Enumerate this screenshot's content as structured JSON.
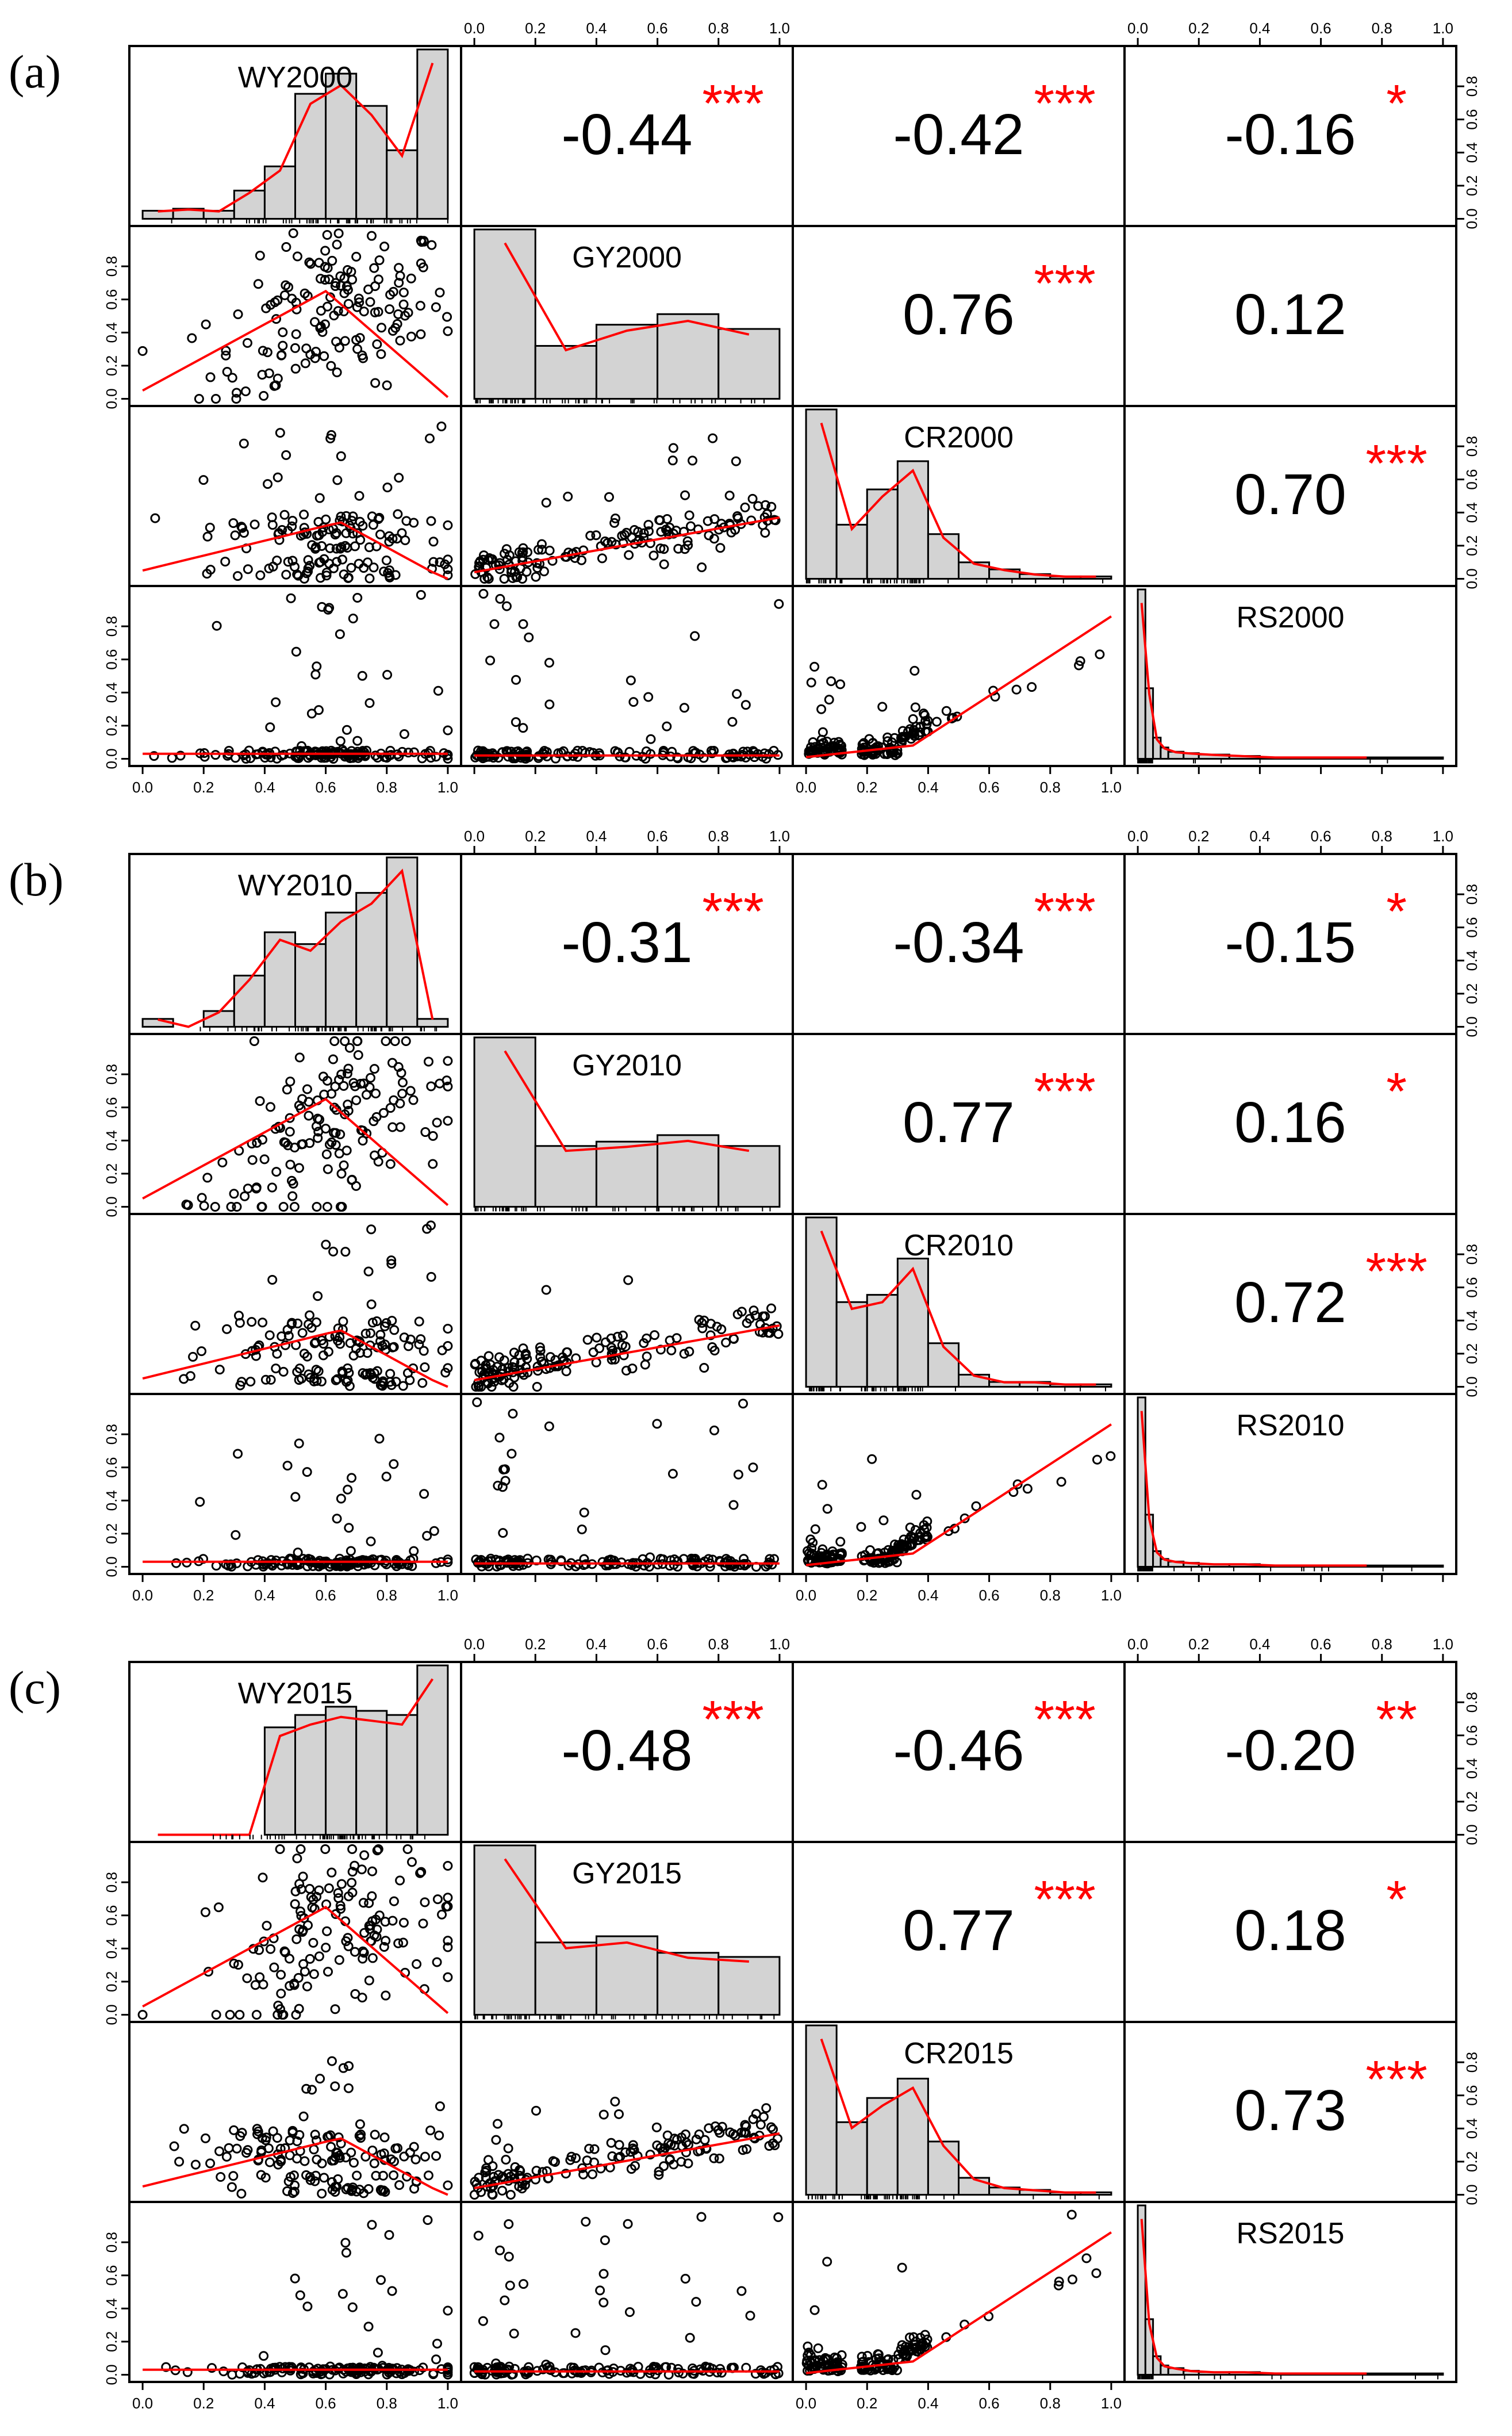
{
  "figure": {
    "variables_order": [
      "WY",
      "GY",
      "CR",
      "RS"
    ],
    "tick_labels": [
      "0.0",
      "0.2",
      "0.4",
      "0.6",
      "0.8",
      "1.0"
    ],
    "colors": {
      "bars": "#d3d3d3",
      "density_line": "#ff0000",
      "stars": "#ff0000",
      "text": "#000000",
      "axes": "#000000"
    }
  },
  "chart_data": [
    {
      "type": "scatter-matrix",
      "panel_label": "(a)",
      "variables": [
        "WY2000",
        "GY2000",
        "CR2000",
        "RS2000"
      ],
      "axis_range": [
        0,
        1
      ],
      "correlations": [
        {
          "row": 0,
          "col": 1,
          "value": "-0.44",
          "stars": "***"
        },
        {
          "row": 0,
          "col": 2,
          "value": "-0.42",
          "stars": "***"
        },
        {
          "row": 0,
          "col": 3,
          "value": "-0.16",
          "stars": "*"
        },
        {
          "row": 1,
          "col": 2,
          "value": "0.76",
          "stars": "***"
        },
        {
          "row": 1,
          "col": 3,
          "value": "0.12",
          "stars": ""
        },
        {
          "row": 2,
          "col": 3,
          "value": "0.70",
          "stars": "***"
        }
      ],
      "histograms": {
        "WY2000": {
          "breaks": [
            0,
            0.1,
            0.2,
            0.3,
            0.4,
            0.5,
            0.6,
            0.7,
            0.8,
            0.9,
            1.0
          ],
          "counts": [
            4,
            5,
            4,
            14,
            26,
            62,
            72,
            56,
            34,
            84
          ]
        },
        "GY2000": {
          "breaks": [
            0,
            0.2,
            0.4,
            0.6,
            0.8,
            1.0
          ],
          "counts": [
            80,
            25,
            35,
            40,
            33
          ]
        },
        "CR2000": {
          "breaks": [
            0,
            0.1,
            0.2,
            0.3,
            0.4,
            0.5,
            0.6,
            0.7,
            0.8,
            0.9,
            1.0
          ],
          "counts": [
            72,
            23,
            38,
            50,
            19,
            7,
            4,
            2,
            1,
            1
          ]
        },
        "RS2000": {
          "breaks": [
            0,
            0.025,
            0.05,
            0.075,
            0.1,
            0.15,
            0.2,
            0.3,
            0.4,
            0.5,
            1.0
          ],
          "counts": [
            120,
            50,
            15,
            8,
            5,
            4,
            3,
            2,
            1,
            1
          ]
        }
      }
    },
    {
      "type": "scatter-matrix",
      "panel_label": "(b)",
      "variables": [
        "WY2010",
        "GY2010",
        "CR2010",
        "RS2010"
      ],
      "axis_range": [
        0,
        1
      ],
      "correlations": [
        {
          "row": 0,
          "col": 1,
          "value": "-0.31",
          "stars": "***"
        },
        {
          "row": 0,
          "col": 2,
          "value": "-0.34",
          "stars": "***"
        },
        {
          "row": 0,
          "col": 3,
          "value": "-0.15",
          "stars": "*"
        },
        {
          "row": 1,
          "col": 2,
          "value": "0.77",
          "stars": "***"
        },
        {
          "row": 1,
          "col": 3,
          "value": "0.16",
          "stars": "*"
        },
        {
          "row": 2,
          "col": 3,
          "value": "0.72",
          "stars": "***"
        }
      ],
      "histograms": {
        "WY2010": {
          "breaks": [
            0,
            0.1,
            0.2,
            0.3,
            0.4,
            0.5,
            0.6,
            0.7,
            0.8,
            0.9,
            1.0
          ],
          "counts": [
            4,
            0,
            8,
            26,
            48,
            42,
            58,
            68,
            86,
            4
          ]
        },
        "GY2010": {
          "breaks": [
            0,
            0.2,
            0.4,
            0.6,
            0.8,
            1.0
          ],
          "counts": [
            78,
            28,
            30,
            33,
            28
          ]
        },
        "CR2010": {
          "breaks": [
            0,
            0.1,
            0.2,
            0.3,
            0.4,
            0.5,
            0.6,
            0.7,
            0.8,
            0.9,
            1.0
          ],
          "counts": [
            70,
            35,
            38,
            53,
            18,
            5,
            2,
            2,
            1,
            1
          ]
        },
        "RS2010": {
          "breaks": [
            0,
            0.025,
            0.05,
            0.075,
            0.1,
            0.15,
            0.2,
            0.3,
            0.4,
            0.5,
            1.0
          ],
          "counts": [
            130,
            40,
            12,
            6,
            4,
            3,
            2,
            2,
            1,
            1
          ]
        }
      }
    },
    {
      "type": "scatter-matrix",
      "panel_label": "(c)",
      "variables": [
        "WY2015",
        "GY2015",
        "CR2015",
        "RS2015"
      ],
      "axis_range": [
        0,
        1
      ],
      "correlations": [
        {
          "row": 0,
          "col": 1,
          "value": "-0.48",
          "stars": "***"
        },
        {
          "row": 0,
          "col": 2,
          "value": "-0.46",
          "stars": "***"
        },
        {
          "row": 0,
          "col": 3,
          "value": "-0.20",
          "stars": "**"
        },
        {
          "row": 1,
          "col": 2,
          "value": "0.77",
          "stars": "***"
        },
        {
          "row": 1,
          "col": 3,
          "value": "0.18",
          "stars": "*"
        },
        {
          "row": 2,
          "col": 3,
          "value": "0.73",
          "stars": "***"
        }
      ],
      "histograms": {
        "WY2015": {
          "breaks": [
            0,
            0.1,
            0.2,
            0.3,
            0.4,
            0.5,
            0.6,
            0.7,
            0.8,
            0.9,
            1.0
          ],
          "counts": [
            0,
            0,
            0,
            0,
            52,
            58,
            62,
            60,
            58,
            82
          ]
        },
        "GY2015": {
          "breaks": [
            0,
            0.2,
            0.4,
            0.6,
            0.8,
            1.0
          ],
          "counts": [
            82,
            35,
            38,
            30,
            28
          ]
        },
        "CR2015": {
          "breaks": [
            0,
            0.1,
            0.2,
            0.3,
            0.4,
            0.5,
            0.6,
            0.7,
            0.8,
            0.9,
            1.0
          ],
          "counts": [
            70,
            30,
            40,
            48,
            22,
            7,
            3,
            2,
            1,
            1
          ]
        },
        "RS2015": {
          "breaks": [
            0,
            0.025,
            0.05,
            0.075,
            0.1,
            0.15,
            0.2,
            0.3,
            0.4,
            0.5,
            1.0
          ],
          "counts": [
            128,
            42,
            14,
            7,
            5,
            3,
            2,
            2,
            1,
            1
          ]
        }
      }
    }
  ]
}
